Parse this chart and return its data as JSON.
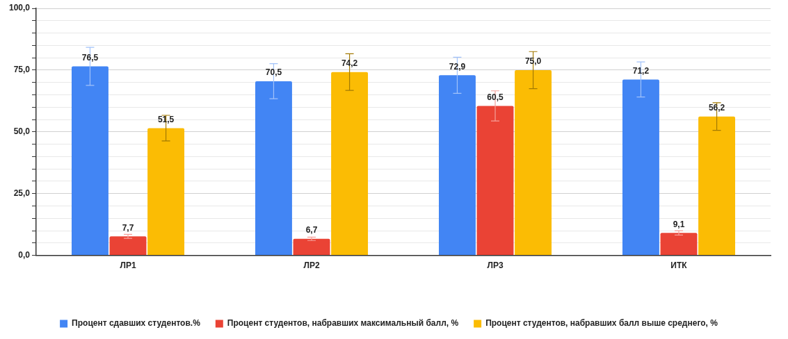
{
  "chart_data": {
    "type": "bar",
    "categories": [
      "ЛР1",
      "ЛР2",
      "ЛР3",
      "ИТК"
    ],
    "series": [
      {
        "name": "Процент сдавших студентов.%",
        "color": "#4285f4",
        "values": [
          76.5,
          70.5,
          72.9,
          71.2
        ],
        "value_labels": [
          "76,5",
          "70,5",
          "72,9",
          "71,2"
        ],
        "errors": [
          7.7,
          7.1,
          7.3,
          7.1
        ]
      },
      {
        "name": "Процент студентов, набравших максимальный балл, %",
        "color": "#ea4335",
        "values": [
          7.7,
          6.7,
          60.5,
          9.1
        ],
        "value_labels": [
          "7,7",
          "6,7",
          "60,5",
          "9,1"
        ],
        "errors": [
          0.8,
          0.7,
          6.1,
          0.9
        ]
      },
      {
        "name": "Процент студентов, набравших балл выше среднего, %",
        "color": "#fbbc04",
        "values": [
          51.5,
          74.2,
          75.0,
          56.2
        ],
        "value_labels": [
          "51,5",
          "74,2",
          "75,0",
          "56,2"
        ],
        "errors": [
          5.2,
          7.4,
          7.5,
          5.6
        ]
      }
    ],
    "ylim": [
      0,
      100
    ],
    "yticks": [
      {
        "value": 0,
        "label": "0,0"
      },
      {
        "value": 5,
        "label": null
      },
      {
        "value": 10,
        "label": null
      },
      {
        "value": 15,
        "label": null
      },
      {
        "value": 20,
        "label": null
      },
      {
        "value": 25,
        "label": "25,0"
      },
      {
        "value": 30,
        "label": null
      },
      {
        "value": 35,
        "label": null
      },
      {
        "value": 40,
        "label": null
      },
      {
        "value": 45,
        "label": null
      },
      {
        "value": 50,
        "label": "50,0"
      },
      {
        "value": 55,
        "label": null
      },
      {
        "value": 60,
        "label": null
      },
      {
        "value": 65,
        "label": null
      },
      {
        "value": 70,
        "label": null
      },
      {
        "value": 75,
        "label": "75,0"
      },
      {
        "value": 80,
        "label": null
      },
      {
        "value": 85,
        "label": null
      },
      {
        "value": 90,
        "label": null
      },
      {
        "value": 95,
        "label": null
      },
      {
        "value": 100,
        "label": "100,0"
      }
    ],
    "grid": "y",
    "legend": "bottom"
  }
}
